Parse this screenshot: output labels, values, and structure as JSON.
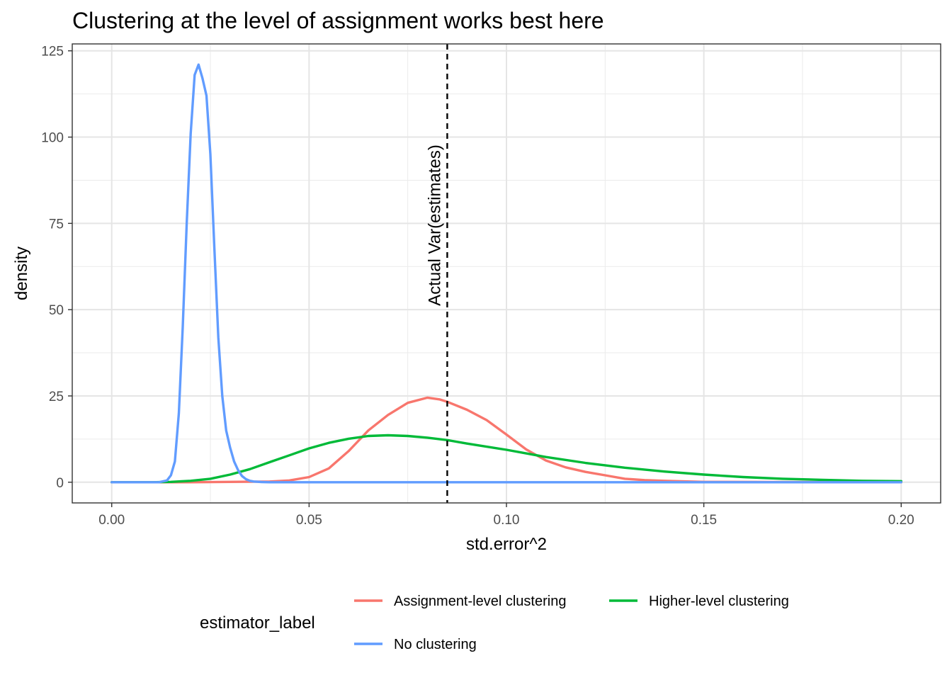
{
  "chart_data": {
    "type": "line",
    "title": "Clustering at the level of assignment works best here",
    "xlabel": "std.error^2",
    "ylabel": "density",
    "xlim": [
      -0.01,
      0.21
    ],
    "ylim": [
      -6,
      127
    ],
    "x_ticks": [
      0.0,
      0.05,
      0.1,
      0.15,
      0.2
    ],
    "x_tick_labels": [
      "0.00",
      "0.05",
      "0.10",
      "0.15",
      "0.20"
    ],
    "y_ticks": [
      0,
      25,
      50,
      75,
      100,
      125
    ],
    "y_tick_labels": [
      "0",
      "25",
      "50",
      "75",
      "100",
      "125"
    ],
    "grid": true,
    "legend": {
      "title": "estimator_label",
      "position": "bottom"
    },
    "reference_line": {
      "x": 0.085,
      "style": "dashed",
      "label": "Actual Var(estimates)"
    },
    "series": [
      {
        "name": "Assignment-level clustering",
        "color": "#F8766D",
        "x": [
          0.0,
          0.02,
          0.04,
          0.045,
          0.05,
          0.055,
          0.06,
          0.065,
          0.07,
          0.075,
          0.08,
          0.083,
          0.085,
          0.09,
          0.095,
          0.1,
          0.105,
          0.11,
          0.115,
          0.12,
          0.125,
          0.13,
          0.135,
          0.14,
          0.15,
          0.2
        ],
        "y": [
          0,
          0,
          0.2,
          0.5,
          1.5,
          4,
          9,
          15,
          19.5,
          23,
          24.5,
          24,
          23.3,
          21,
          18,
          13.8,
          9.5,
          6.3,
          4.3,
          3,
          2,
          1,
          0.6,
          0.4,
          0.1,
          0
        ]
      },
      {
        "name": "Higher-level clustering",
        "color": "#00BA38",
        "x": [
          0.0,
          0.01,
          0.015,
          0.02,
          0.025,
          0.03,
          0.035,
          0.04,
          0.045,
          0.05,
          0.055,
          0.06,
          0.065,
          0.07,
          0.075,
          0.08,
          0.085,
          0.09,
          0.1,
          0.11,
          0.12,
          0.13,
          0.14,
          0.15,
          0.16,
          0.17,
          0.18,
          0.19,
          0.2
        ],
        "y": [
          0,
          0,
          0.1,
          0.4,
          1,
          2.2,
          3.8,
          5.8,
          7.8,
          9.8,
          11.4,
          12.6,
          13.4,
          13.6,
          13.4,
          12.9,
          12.2,
          11.2,
          9.4,
          7.3,
          5.6,
          4.2,
          3.1,
          2.2,
          1.5,
          1,
          0.7,
          0.4,
          0.3
        ]
      },
      {
        "name": "No clustering",
        "color": "#619CFF",
        "x": [
          0.0,
          0.012,
          0.014,
          0.015,
          0.016,
          0.017,
          0.018,
          0.019,
          0.02,
          0.021,
          0.022,
          0.023,
          0.024,
          0.025,
          0.026,
          0.027,
          0.028,
          0.029,
          0.03,
          0.031,
          0.032,
          0.033,
          0.034,
          0.035,
          0.036,
          0.038,
          0.04,
          0.2
        ],
        "y": [
          0,
          0,
          0.5,
          2,
          6,
          20,
          45,
          75,
          101,
          118,
          121,
          117,
          112,
          95,
          68,
          42,
          25,
          15,
          10,
          6,
          3.5,
          1.8,
          0.9,
          0.4,
          0.2,
          0.05,
          0,
          0
        ]
      }
    ]
  }
}
